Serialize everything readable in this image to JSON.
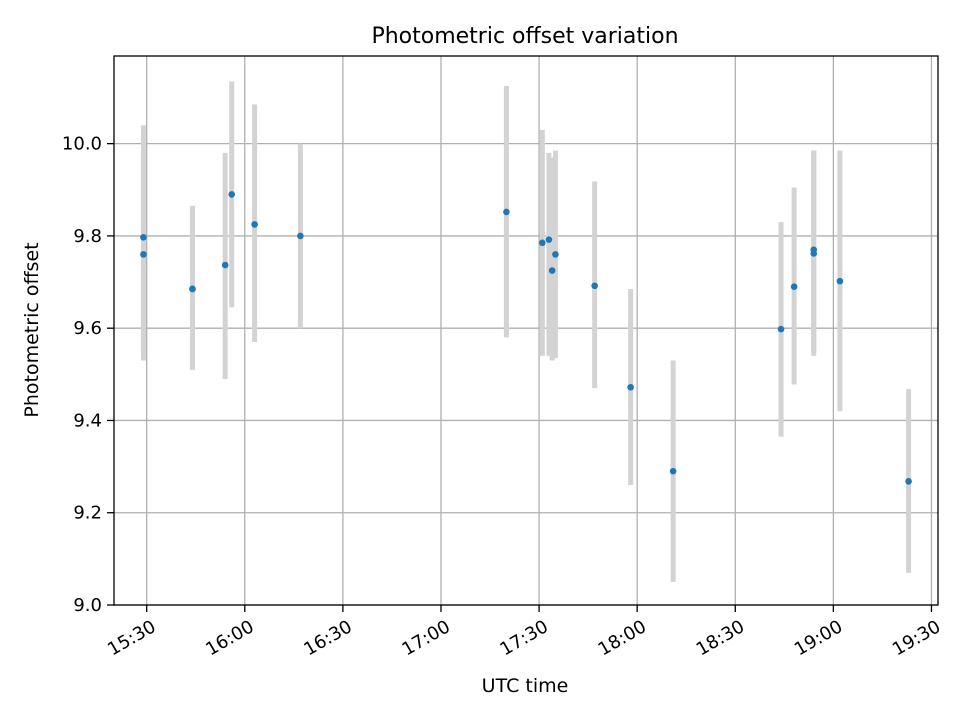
{
  "chart_data": {
    "type": "scatter",
    "title": "Photometric offset variation",
    "xlabel": "UTC time",
    "ylabel": "Photometric offset",
    "xlim": [
      "15:20",
      "19:32"
    ],
    "ylim": [
      9.0,
      10.19
    ],
    "x_ticks": [
      "15:30",
      "16:00",
      "16:30",
      "17:00",
      "17:30",
      "18:00",
      "18:30",
      "19:00",
      "19:30"
    ],
    "y_ticks": [
      "9.0",
      "9.2",
      "9.4",
      "9.6",
      "9.8",
      "10.0"
    ],
    "grid": true,
    "colors": {
      "points": "#1f77b4",
      "errorbars": "#d3d3d3",
      "grid": "#b0b0b0"
    },
    "points": [
      {
        "x": "15:29",
        "y": 9.797,
        "err_low": 9.55,
        "err_high": 10.04
      },
      {
        "x": "15:29",
        "y": 9.76,
        "err_low": 9.53,
        "err_high": 9.99
      },
      {
        "x": "15:44",
        "y": 9.685,
        "err_low": 9.51,
        "err_high": 9.865
      },
      {
        "x": "15:44",
        "y": 9.685,
        "err_low": 9.51,
        "err_high": 9.865
      },
      {
        "x": "15:54",
        "y": 9.737,
        "err_low": 9.49,
        "err_high": 9.98
      },
      {
        "x": "15:56",
        "y": 9.89,
        "err_low": 9.645,
        "err_high": 10.135
      },
      {
        "x": "16:03",
        "y": 9.825,
        "err_low": 9.57,
        "err_high": 10.085
      },
      {
        "x": "16:17",
        "y": 9.8,
        "err_low": 9.6,
        "err_high": 10.0
      },
      {
        "x": "17:20",
        "y": 9.852,
        "err_low": 9.58,
        "err_high": 10.125
      },
      {
        "x": "17:31",
        "y": 9.785,
        "err_low": 9.54,
        "err_high": 10.03
      },
      {
        "x": "17:33",
        "y": 9.792,
        "err_low": 9.54,
        "err_high": 9.98
      },
      {
        "x": "17:34",
        "y": 9.725,
        "err_low": 9.53,
        "err_high": 9.97
      },
      {
        "x": "17:35",
        "y": 9.76,
        "err_low": 9.535,
        "err_high": 9.985
      },
      {
        "x": "17:47",
        "y": 9.692,
        "err_low": 9.47,
        "err_high": 9.918
      },
      {
        "x": "17:58",
        "y": 9.472,
        "err_low": 9.26,
        "err_high": 9.685
      },
      {
        "x": "18:11",
        "y": 9.29,
        "err_low": 9.05,
        "err_high": 9.53
      },
      {
        "x": "18:44",
        "y": 9.598,
        "err_low": 9.365,
        "err_high": 9.83
      },
      {
        "x": "18:48",
        "y": 9.69,
        "err_low": 9.478,
        "err_high": 9.905
      },
      {
        "x": "18:54",
        "y": 9.762,
        "err_low": 9.54,
        "err_high": 9.985
      },
      {
        "x": "18:54",
        "y": 9.77,
        "err_low": 9.55,
        "err_high": 9.985
      },
      {
        "x": "19:02",
        "y": 9.702,
        "err_low": 9.42,
        "err_high": 9.985
      },
      {
        "x": "19:23",
        "y": 9.268,
        "err_low": 9.07,
        "err_high": 9.468
      }
    ]
  }
}
